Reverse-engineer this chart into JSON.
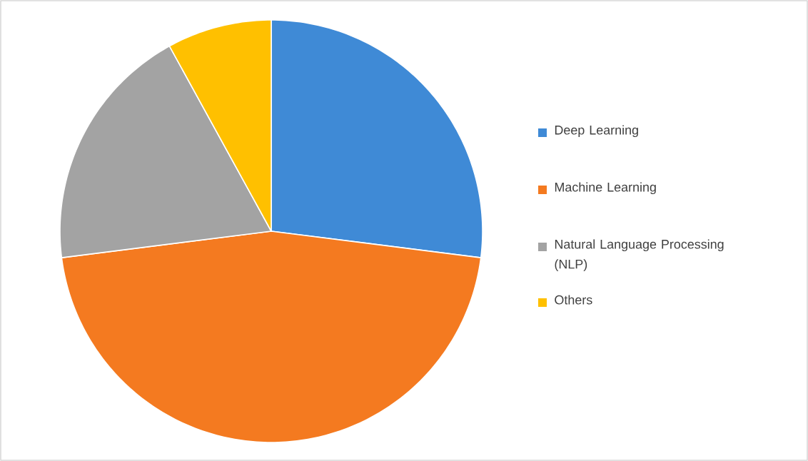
{
  "chart_data": {
    "type": "pie",
    "legend": "right",
    "categories": [
      "Deep Learning",
      "Machine Learning",
      "Natural Language Processing (NLP)",
      "Others"
    ],
    "values": [
      27,
      46,
      19,
      8
    ],
    "colors": [
      "#3f8ad6",
      "#f47a20",
      "#a3a3a3",
      "#ffc000"
    ]
  }
}
